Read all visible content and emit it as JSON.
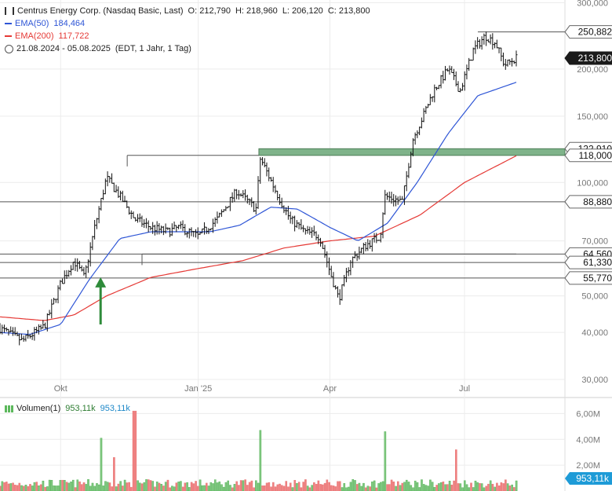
{
  "header": {
    "title": "Centrus Energy Corp. (Nasdaq Basic, Last)",
    "ohlc": {
      "O": "O: 212,790",
      "H": "H: 218,960",
      "L": "L: 206,120",
      "C": "C: 213,800"
    },
    "ema50_label": "EMA(50)",
    "ema50_value": "184,464",
    "ema200_label": "EMA(200)",
    "ema200_value": "117,722",
    "range_text": "21.08.2024 - 05.08.2025",
    "range_meta": "(EDT, 1 Jahr, 1 Tag)"
  },
  "volume_legend": {
    "label": "Volumen(1)",
    "value1": "953,11k",
    "value2": "953,11k"
  },
  "colors": {
    "ema50": "#2f56d6",
    "ema200": "#e53935",
    "up": "#7fc77f",
    "down": "#f08080",
    "zone": "#7fb38a",
    "arrow": "#2e8b3a",
    "badge": "#1a1a1a",
    "vol_badge": "#1e9bd7"
  },
  "chart_data": {
    "type": "line",
    "title": "Centrus Energy Corp. (Nasdaq Basic, Last)",
    "y_scale": "log",
    "ylim": [
      27000,
      305000
    ],
    "y_ticks": [
      30000,
      40000,
      50000,
      70000,
      100000,
      150000,
      200000,
      300000
    ],
    "y_tick_labels": [
      "30,000",
      "40,000",
      "50,000",
      "70,000",
      "100,000",
      "150,000",
      "200,000",
      "300,000"
    ],
    "x_tick_labels": [
      "Okt",
      "Jan '25",
      "Apr",
      "Jul"
    ],
    "x_tick_dates": [
      "2024-10-01",
      "2025-01-02",
      "2025-04-01",
      "2025-07-01"
    ],
    "x_range": [
      "2024-08-21",
      "2025-08-05"
    ],
    "grid": true,
    "series": [
      {
        "name": "Centrus Energy Corp.",
        "kind": "ohlc",
        "x": [
          "2024-08-21",
          "2024-09-05",
          "2024-09-20",
          "2024-10-01",
          "2024-10-10",
          "2024-10-17",
          "2024-10-24",
          "2024-11-01",
          "2024-11-10",
          "2024-11-20",
          "2024-12-01",
          "2024-12-12",
          "2024-12-20",
          "2025-01-02",
          "2025-01-15",
          "2025-01-28",
          "2025-02-10",
          "2025-02-13",
          "2025-02-25",
          "2025-03-05",
          "2025-03-15",
          "2025-03-25",
          "2025-04-01",
          "2025-04-07",
          "2025-04-15",
          "2025-04-25",
          "2025-05-05",
          "2025-05-08",
          "2025-05-20",
          "2025-05-27",
          "2025-06-03",
          "2025-06-10",
          "2025-06-20",
          "2025-06-28",
          "2025-07-07",
          "2025-07-15",
          "2025-07-22",
          "2025-07-28",
          "2025-08-05"
        ],
        "close": [
          41000,
          38000,
          41500,
          54000,
          62000,
          56000,
          76000,
          103000,
          92000,
          80000,
          76000,
          74000,
          76000,
          72000,
          80000,
          95000,
          85000,
          116000,
          92000,
          80000,
          74000,
          72000,
          58000,
          49000,
          62000,
          68000,
          72000,
          92000,
          89000,
          130000,
          150000,
          175000,
          200000,
          175000,
          225000,
          245000,
          235000,
          205000,
          213800
        ]
      },
      {
        "name": "EMA(50)",
        "x": [
          "2024-08-21",
          "2024-09-10",
          "2024-10-01",
          "2024-10-20",
          "2024-11-10",
          "2024-12-01",
          "2024-12-20",
          "2025-01-10",
          "2025-01-30",
          "2025-02-20",
          "2025-03-10",
          "2025-04-01",
          "2025-04-20",
          "2025-05-10",
          "2025-05-30",
          "2025-06-20",
          "2025-07-10",
          "2025-08-05"
        ],
        "values": [
          40000,
          39500,
          42000,
          55000,
          71000,
          74000,
          74000,
          74000,
          77000,
          86000,
          85000,
          76000,
          70000,
          78000,
          100000,
          135000,
          170000,
          184464
        ]
      },
      {
        "name": "EMA(200)",
        "x": [
          "2024-08-21",
          "2024-09-20",
          "2024-10-10",
          "2024-11-01",
          "2024-12-01",
          "2025-01-01",
          "2025-02-01",
          "2025-03-01",
          "2025-04-01",
          "2025-05-01",
          "2025-06-01",
          "2025-07-01",
          "2025-08-05"
        ],
        "values": [
          44000,
          43000,
          44500,
          50000,
          56000,
          59000,
          62000,
          67000,
          70000,
          72000,
          82000,
          100000,
          117722
        ]
      }
    ],
    "horizontal_lines": [
      250882,
      88880,
      64560,
      61330,
      55770
    ],
    "right_labels": [
      {
        "text": "250,882",
        "value": 250882,
        "style": "light"
      },
      {
        "text": "213,800",
        "value": 213800,
        "style": "dark"
      },
      {
        "text": "122,910",
        "value": 122910,
        "style": "light"
      },
      {
        "text": "118,000",
        "value": 118000,
        "style": "light"
      },
      {
        "text": "88,880",
        "value": 88880,
        "style": "light"
      },
      {
        "text": "64,560",
        "value": 64560,
        "style": "light"
      },
      {
        "text": "61,330",
        "value": 61330,
        "style": "light"
      },
      {
        "text": "55,770",
        "value": 55770,
        "style": "light"
      }
    ],
    "zone": {
      "from": 118000,
      "to": 122910,
      "start": "2025-02-12"
    },
    "resistance_lines": [
      {
        "value": 118000,
        "from": "2024-11-15",
        "to": "2025-02-12"
      },
      {
        "value": 64560,
        "from": "2024-11-25",
        "to": "2025-08-05"
      }
    ],
    "arrow": {
      "date": "2024-10-28",
      "from": 42000,
      "to": 55770
    },
    "volume": {
      "y_ticks": [
        2000000,
        4000000,
        6000000
      ],
      "y_tick_labels": [
        "2,00M",
        "4,00M",
        "6,00M"
      ],
      "last_label": "953,11k",
      "spikes": [
        {
          "x": "2024-10-28",
          "value": 4100000
        },
        {
          "x": "2024-11-06",
          "value": 2600000
        },
        {
          "x": "2024-11-19",
          "value": 6900000
        },
        {
          "x": "2024-11-20",
          "value": 6200000
        },
        {
          "x": "2025-02-13",
          "value": 4700000
        },
        {
          "x": "2025-05-08",
          "value": 4600000
        },
        {
          "x": "2025-06-25",
          "value": 3200000
        }
      ]
    }
  }
}
